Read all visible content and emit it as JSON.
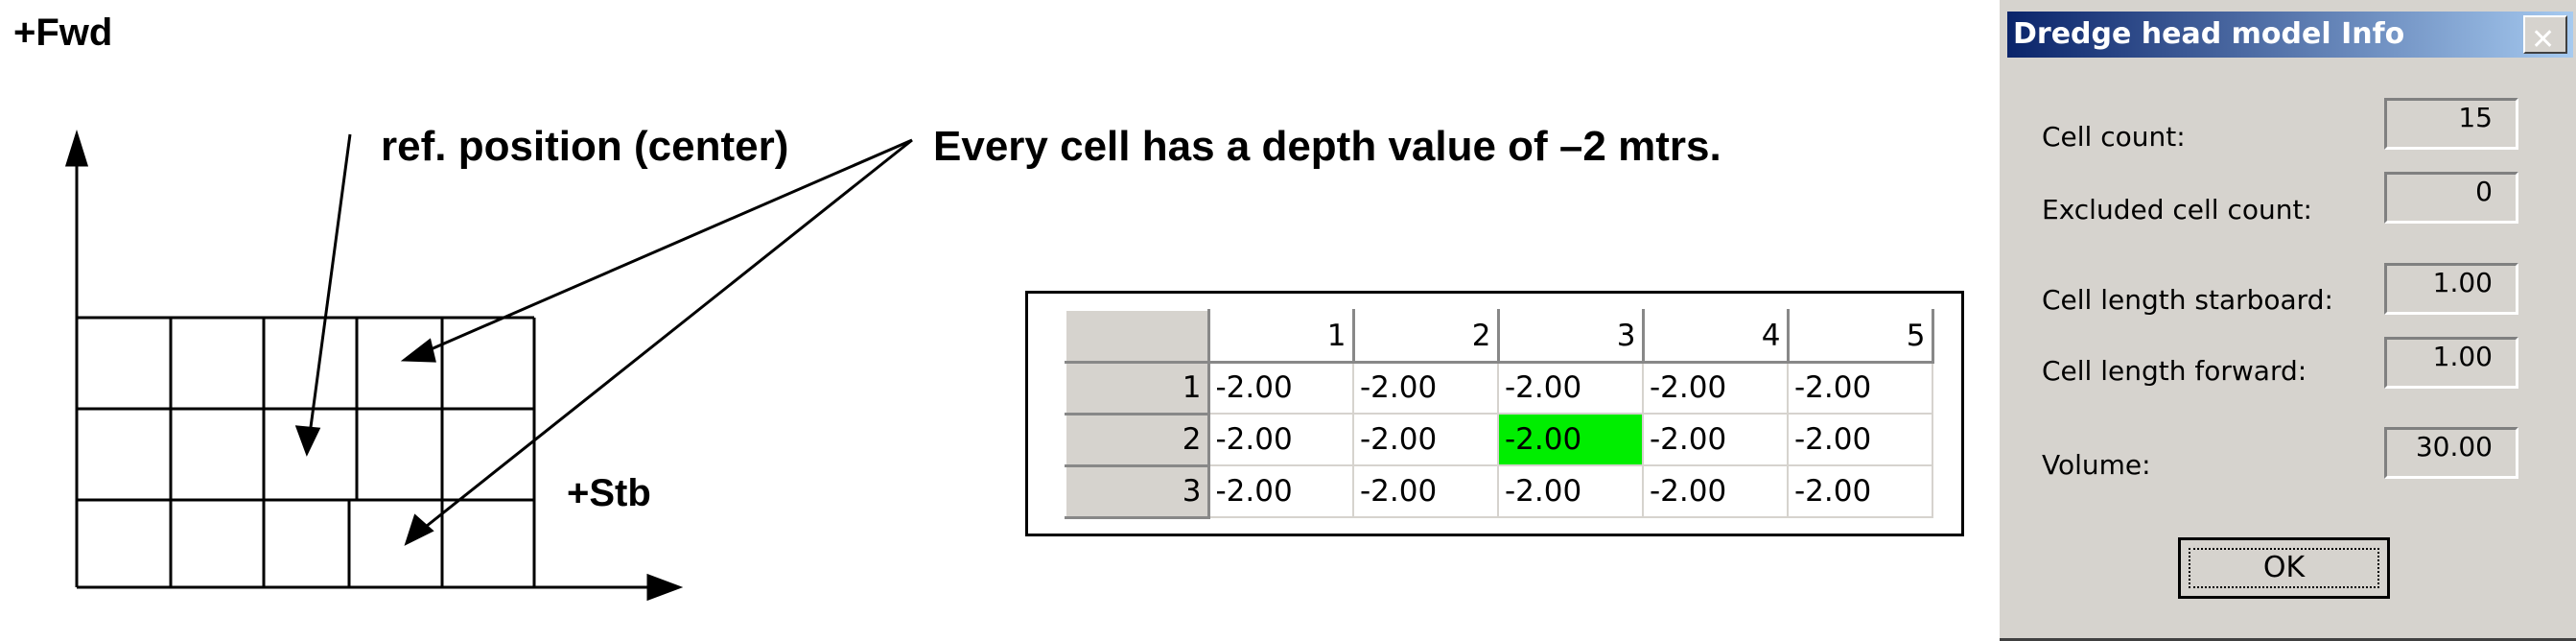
{
  "diagram": {
    "fwd_label": "+Fwd",
    "stb_label": "+Stb",
    "ref_label": "ref. position (center)",
    "depth_label": "Every cell has a depth value of –2 mtrs."
  },
  "grid_table": {
    "columns": [
      "1",
      "2",
      "3",
      "4",
      "5"
    ],
    "rows": [
      {
        "label": "1",
        "cells": [
          "-2.00",
          "-2.00",
          "-2.00",
          "-2.00",
          "-2.00"
        ]
      },
      {
        "label": "2",
        "cells": [
          "-2.00",
          "-2.00",
          "-2.00",
          "-2.00",
          "-2.00"
        ]
      },
      {
        "label": "3",
        "cells": [
          "-2.00",
          "-2.00",
          "-2.00",
          "-2.00",
          "-2.00"
        ]
      }
    ],
    "selected_cell": {
      "row": 2,
      "col": 3
    },
    "selected_color": "#00ee00"
  },
  "dialog": {
    "title": "Dredge head model Info",
    "close_icon": "close-x-icon",
    "fields": [
      {
        "label": "Cell count:",
        "value": "15"
      },
      {
        "label": "Excluded cell count:",
        "value": "0"
      },
      {
        "label": "Cell length starboard:",
        "value": "1.00"
      },
      {
        "label": "Cell length forward:",
        "value": "1.00"
      },
      {
        "label": "Volume:",
        "value": "30.00"
      }
    ],
    "ok_label": "OK"
  }
}
